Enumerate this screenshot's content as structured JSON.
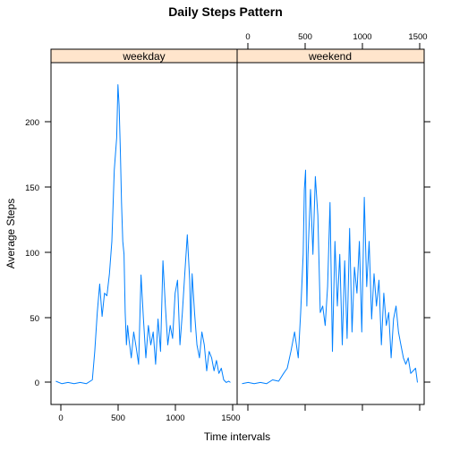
{
  "chart_data": {
    "type": "line",
    "title": "Daily Steps Pattern",
    "xlabel": "Time intervals",
    "ylabel": "Average Steps",
    "xlim": [
      -40,
      1490
    ],
    "ylim": [
      -16,
      248
    ],
    "x_ticks": [
      0,
      500,
      1000,
      1500
    ],
    "y_ticks": [
      0,
      50,
      100,
      150,
      200
    ],
    "x_tick_labels": [
      "0",
      "500",
      "1000",
      "1500"
    ],
    "y_tick_labels": [
      "0",
      "50",
      "100",
      "150",
      "200"
    ],
    "strip_color": "#ffe5cc",
    "line_color": "#0080ff",
    "panels": [
      {
        "strip": "weekday",
        "series": [
          {
            "x": [
              0,
              50,
              100,
              150,
              200,
              250,
              300,
              320,
              340,
              360,
              380,
              400,
              420,
              440,
              460,
              480,
              500,
              510,
              520,
              530,
              540,
              550,
              560,
              570,
              580,
              590,
              600,
              620,
              640,
              660,
              680,
              700,
              720,
              740,
              760,
              780,
              800,
              820,
              840,
              860,
              880,
              900,
              920,
              940,
              960,
              980,
              1000,
              1020,
              1040,
              1060,
              1080,
              1100,
              1110,
              1120,
              1140,
              1160,
              1180,
              1200,
              1220,
              1240,
              1260,
              1280,
              1300,
              1320,
              1340,
              1360,
              1380,
              1400,
              1420,
              1435
            ],
            "y": [
              2,
              0,
              1,
              0,
              1,
              0,
              3,
              25,
              55,
              77,
              52,
              70,
              68,
              85,
              110,
              165,
              190,
              231,
              215,
              180,
              140,
              110,
              100,
              55,
              30,
              45,
              35,
              20,
              40,
              28,
              15,
              84,
              50,
              20,
              45,
              30,
              40,
              15,
              50,
              25,
              95,
              60,
              30,
              45,
              35,
              70,
              80,
              30,
              55,
              85,
              115,
              80,
              40,
              85,
              55,
              30,
              20,
              40,
              30,
              10,
              25,
              20,
              10,
              18,
              8,
              12,
              3,
              1,
              2,
              1
            ]
          }
        ]
      },
      {
        "strip": "weekend",
        "series": [
          {
            "x": [
              0,
              50,
              100,
              150,
              200,
              250,
              300,
              340,
              370,
              400,
              430,
              460,
              480,
              500,
              510,
              520,
              530,
              540,
              560,
              580,
              600,
              620,
              640,
              660,
              680,
              700,
              720,
              740,
              760,
              780,
              800,
              820,
              840,
              860,
              880,
              900,
              920,
              940,
              960,
              980,
              1000,
              1020,
              1040,
              1060,
              1080,
              1100,
              1120,
              1140,
              1160,
              1180,
              1200,
              1220,
              1240,
              1260,
              1280,
              1300,
              1320,
              1340,
              1360,
              1380,
              1400,
              1420,
              1435
            ],
            "y": [
              0,
              1,
              0,
              1,
              0,
              3,
              2,
              8,
              12,
              25,
              40,
              20,
              55,
              100,
              150,
              165,
              60,
              100,
              150,
              100,
              160,
              130,
              55,
              60,
              45,
              75,
              140,
              25,
              110,
              60,
              100,
              30,
              95,
              35,
              120,
              40,
              90,
              70,
              110,
              40,
              144,
              75,
              110,
              50,
              85,
              60,
              80,
              30,
              70,
              45,
              55,
              20,
              50,
              60,
              40,
              30,
              20,
              15,
              20,
              8,
              10,
              12,
              1
            ]
          }
        ]
      }
    ]
  }
}
